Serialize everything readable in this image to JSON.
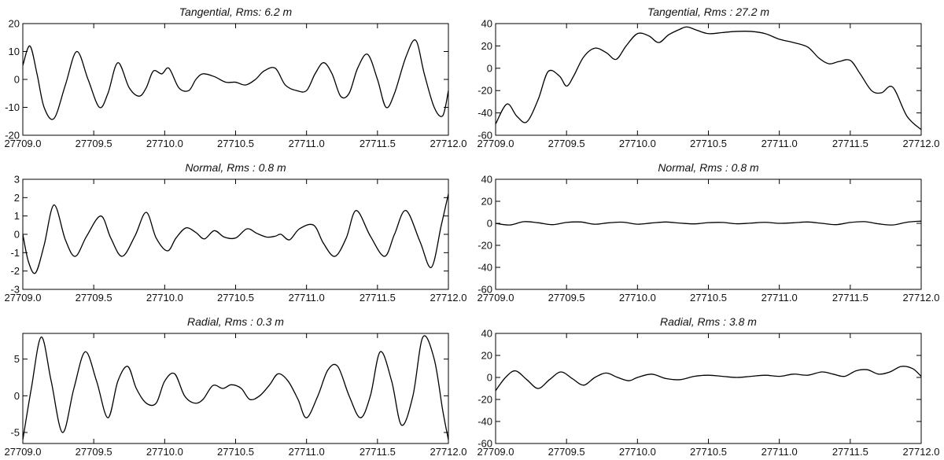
{
  "chart_data": [
    {
      "type": "line",
      "title": "Tangential, Rms: 6.2 m",
      "xlim": [
        27709.0,
        27712.0
      ],
      "ylim": [
        -20,
        20
      ],
      "xticks": [
        27709.0,
        27709.5,
        27710.0,
        27710.5,
        27711.0,
        27711.5,
        27712.0
      ],
      "xtick_labels": [
        "27709.0",
        "27709.5",
        "27710.0",
        "27710.5",
        "27711.0",
        "27711.5",
        "27712.0"
      ],
      "yticks": [
        -20,
        -10,
        0,
        10,
        20
      ],
      "ytick_labels": [
        "-20",
        "-10",
        "0",
        "10",
        "20"
      ],
      "series": [
        {
          "x": [
            27709.0,
            27709.05,
            27709.1,
            27709.15,
            27709.22,
            27709.3,
            27709.38,
            27709.46,
            27709.54,
            27709.6,
            27709.67,
            27709.75,
            27709.82,
            27709.87,
            27709.92,
            27709.98,
            27710.03,
            27710.1,
            27710.17,
            27710.22,
            27710.27,
            27710.35,
            27710.43,
            27710.5,
            27710.57,
            27710.64,
            27710.7,
            27710.78,
            27710.85,
            27710.93,
            27711.0,
            27711.06,
            27711.12,
            27711.18,
            27711.24,
            27711.3,
            27711.36,
            27711.43,
            27711.5,
            27711.56,
            27711.62,
            27711.7,
            27711.77,
            27711.83,
            27711.9,
            27711.96,
            27712.0
          ],
          "y": [
            5,
            12,
            2,
            -10,
            -14,
            -2,
            10,
            0,
            -10,
            -5,
            6,
            -3,
            -6,
            -3,
            3,
            2,
            4,
            -3,
            -4,
            0,
            2,
            1,
            -1,
            -1,
            -2,
            0,
            3,
            4,
            -2,
            -4,
            -4,
            2,
            6,
            2,
            -6,
            -5,
            4,
            9,
            0,
            -10,
            -5,
            8,
            14,
            2,
            -10,
            -13,
            -4
          ]
        }
      ]
    },
    {
      "type": "line",
      "title": "Tangential, Rms : 27.2 m",
      "xlim": [
        27709.0,
        27712.0
      ],
      "ylim": [
        -60,
        40
      ],
      "xticks": [
        27709.0,
        27709.5,
        27710.0,
        27710.5,
        27711.0,
        27711.5,
        27712.0
      ],
      "xtick_labels": [
        "27709.0",
        "27709.5",
        "27710.0",
        "27710.5",
        "27711.0",
        "27711.5",
        "27712.0"
      ],
      "yticks": [
        -60,
        -40,
        -20,
        0,
        20,
        40
      ],
      "ytick_labels": [
        "-60",
        "-40",
        "-20",
        "0",
        "20",
        "40"
      ],
      "series": [
        {
          "x": [
            27709.0,
            27709.08,
            27709.15,
            27709.22,
            27709.3,
            27709.37,
            27709.45,
            27709.5,
            27709.55,
            27709.62,
            27709.7,
            27709.78,
            27709.85,
            27709.92,
            27710.0,
            27710.08,
            27710.15,
            27710.22,
            27710.3,
            27710.35,
            27710.42,
            27710.5,
            27710.6,
            27710.7,
            27710.8,
            27710.9,
            27711.0,
            27711.1,
            27711.2,
            27711.28,
            27711.35,
            27711.42,
            27711.5,
            27711.57,
            27711.65,
            27711.72,
            27711.8,
            27711.9,
            27712.0
          ],
          "y": [
            -50,
            -32,
            -43,
            -48,
            -28,
            -3,
            -7,
            -16,
            -7,
            10,
            18,
            14,
            8,
            20,
            31,
            29,
            23,
            30,
            35,
            37,
            34,
            31,
            32,
            33,
            33,
            31,
            26,
            23,
            19,
            9,
            4,
            6,
            7,
            -5,
            -20,
            -22,
            -17,
            -43,
            -55
          ]
        }
      ]
    },
    {
      "type": "line",
      "title": "Normal, Rms : 0.8 m",
      "xlim": [
        27709.0,
        27712.0
      ],
      "ylim": [
        -3,
        3
      ],
      "xticks": [
        27709.0,
        27709.5,
        27710.0,
        27710.5,
        27711.0,
        27711.5,
        27712.0
      ],
      "xtick_labels": [
        "27709.0",
        "27709.5",
        "27710.0",
        "27710.5",
        "27711.0",
        "27711.5",
        "27712.0"
      ],
      "yticks": [
        -3,
        -2,
        -1,
        0,
        1,
        2,
        3
      ],
      "ytick_labels": [
        "-3",
        "-2",
        "-1",
        "0",
        "1",
        "2",
        "3"
      ],
      "series": [
        {
          "x": [
            27709.0,
            27709.04,
            27709.09,
            27709.15,
            27709.22,
            27709.3,
            27709.37,
            27709.45,
            27709.55,
            27709.62,
            27709.7,
            27709.79,
            27709.87,
            27709.94,
            27710.02,
            27710.08,
            27710.15,
            27710.22,
            27710.28,
            27710.35,
            27710.42,
            27710.5,
            27710.58,
            27710.65,
            27710.72,
            27710.78,
            27710.82,
            27710.88,
            27710.95,
            27711.05,
            27711.12,
            27711.2,
            27711.28,
            27711.35,
            27711.45,
            27711.55,
            27711.62,
            27711.7,
            27711.8,
            27711.88,
            27711.95,
            27712.0
          ],
          "y": [
            0,
            -1.5,
            -2.1,
            -0.6,
            1.6,
            -0.3,
            -1.2,
            -0.1,
            1.0,
            -0.2,
            -1.2,
            -0.1,
            1.2,
            -0.2,
            -0.9,
            -0.2,
            0.35,
            0.1,
            -0.25,
            0.2,
            -0.15,
            -0.2,
            0.3,
            0.05,
            -0.15,
            -0.1,
            0.0,
            -0.3,
            0.3,
            0.5,
            -0.5,
            -1.2,
            -0.2,
            1.3,
            -0.1,
            -1.2,
            0.0,
            1.3,
            -0.4,
            -1.8,
            0.5,
            2.2
          ]
        }
      ]
    },
    {
      "type": "line",
      "title": "Normal, Rms : 0.8 m",
      "xlim": [
        27709.0,
        27712.0
      ],
      "ylim": [
        -60,
        40
      ],
      "xticks": [
        27709.0,
        27709.5,
        27710.0,
        27710.5,
        27711.0,
        27711.5,
        27712.0
      ],
      "xtick_labels": [
        "27709.0",
        "27709.5",
        "27710.0",
        "27710.5",
        "27711.0",
        "27711.5",
        "27712.0"
      ],
      "yticks": [
        -60,
        -40,
        -20,
        0,
        20,
        40
      ],
      "ytick_labels": [
        "-60",
        "-40",
        "-20",
        "0",
        "20",
        "40"
      ],
      "series": [
        {
          "x": [
            27709.0,
            27709.1,
            27709.2,
            27709.3,
            27709.4,
            27709.5,
            27709.6,
            27709.7,
            27709.8,
            27709.9,
            27710.0,
            27710.1,
            27710.2,
            27710.3,
            27710.4,
            27710.5,
            27710.6,
            27710.7,
            27710.8,
            27710.9,
            27711.0,
            27711.1,
            27711.2,
            27711.3,
            27711.4,
            27711.5,
            27711.6,
            27711.7,
            27711.8,
            27711.9,
            27712.0
          ],
          "y": [
            0,
            -1.5,
            1.5,
            0.5,
            -1.2,
            0.8,
            1.2,
            -0.8,
            0.5,
            1.0,
            -0.8,
            0.3,
            1.2,
            0.2,
            -0.5,
            0.6,
            0.8,
            -0.4,
            0.2,
            0.9,
            0.0,
            0.5,
            1.2,
            0.0,
            -1.2,
            0.8,
            1.5,
            -0.5,
            -1.5,
            1.0,
            2.0
          ]
        }
      ]
    },
    {
      "type": "line",
      "title": "Radial, Rms : 0.3 m",
      "xlim": [
        27709.0,
        27712.0
      ],
      "ylim": [
        -6.5,
        8.5
      ],
      "xticks": [
        27709.0,
        27709.5,
        27710.0,
        27710.5,
        27711.0,
        27711.5,
        27712.0
      ],
      "xtick_labels": [
        "27709.0",
        "27709.5",
        "27710.0",
        "27710.5",
        "27711.0",
        "27711.5",
        "27712.0"
      ],
      "yticks": [
        -5,
        0,
        5
      ],
      "ytick_labels": [
        "-5",
        "0",
        "5"
      ],
      "series": [
        {
          "x": [
            27709.0,
            27709.06,
            27709.13,
            27709.2,
            27709.28,
            27709.36,
            27709.44,
            27709.52,
            27709.6,
            27709.67,
            27709.74,
            27709.8,
            27709.87,
            27709.94,
            27710.0,
            27710.07,
            27710.14,
            27710.21,
            27710.27,
            27710.34,
            27710.41,
            27710.47,
            27710.54,
            27710.6,
            27710.67,
            27710.74,
            27710.8,
            27710.87,
            27710.94,
            27711.0,
            27711.08,
            27711.15,
            27711.22,
            27711.3,
            27711.38,
            27711.45,
            27711.52,
            27711.6,
            27711.67,
            27711.75,
            27711.82,
            27711.9,
            27711.96,
            27712.0
          ],
          "y": [
            -6,
            1,
            8,
            2,
            -5,
            1,
            6,
            2,
            -3,
            2,
            4,
            1,
            -1,
            -1,
            2,
            3,
            0,
            -1,
            -0.5,
            1.4,
            1,
            1.5,
            1,
            -0.5,
            0,
            1.5,
            3,
            2,
            -0.5,
            -3,
            0,
            3.5,
            4,
            0,
            -3,
            0,
            6,
            2,
            -4,
            0,
            8,
            5,
            -2,
            -6
          ]
        }
      ]
    },
    {
      "type": "line",
      "title": "Radial, Rms : 3.8 m",
      "xlim": [
        27709.0,
        27712.0
      ],
      "ylim": [
        -60,
        40
      ],
      "xticks": [
        27709.0,
        27709.5,
        27710.0,
        27710.5,
        27711.0,
        27711.5,
        27712.0
      ],
      "xtick_labels": [
        "27709.0",
        "27709.5",
        "27710.0",
        "27710.5",
        "27711.0",
        "27711.5",
        "27712.0"
      ],
      "yticks": [
        -60,
        -40,
        -20,
        0,
        20,
        40
      ],
      "ytick_labels": [
        "-60",
        "-40",
        "-20",
        "0",
        "20",
        "40"
      ],
      "series": [
        {
          "x": [
            27709.0,
            27709.07,
            27709.14,
            27709.22,
            27709.3,
            27709.38,
            27709.46,
            27709.54,
            27709.62,
            27709.7,
            27709.78,
            27709.86,
            27709.94,
            27710.0,
            27710.1,
            27710.2,
            27710.3,
            27710.4,
            27710.5,
            27710.6,
            27710.7,
            27710.8,
            27710.9,
            27711.0,
            27711.1,
            27711.2,
            27711.3,
            27711.38,
            27711.46,
            27711.54,
            27711.62,
            27711.7,
            27711.78,
            27711.86,
            27711.94,
            27712.0
          ],
          "y": [
            -12,
            0,
            6,
            -2,
            -10,
            -2,
            5,
            -1,
            -7,
            0,
            4,
            0,
            -3,
            0,
            3,
            -1,
            -2,
            1,
            2,
            1,
            0,
            1,
            2,
            1,
            3,
            2,
            5,
            3,
            1,
            6,
            7,
            3,
            5,
            10,
            8,
            1
          ]
        }
      ]
    }
  ]
}
